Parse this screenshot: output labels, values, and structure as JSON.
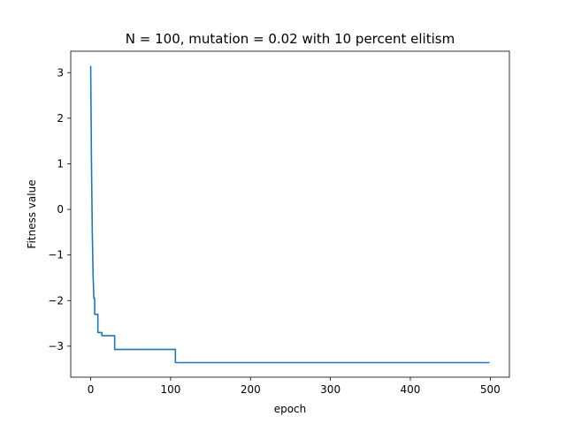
{
  "chart_data": {
    "type": "line",
    "title": "N = 100, mutation = 0.02 with 10 percent elitism",
    "xlabel": "epoch",
    "ylabel": "Fitness value",
    "xlim": [
      -24.95,
      523.95
    ],
    "ylim": [
      -3.68,
      3.47
    ],
    "xticks": [
      {
        "value": 0,
        "label": "0"
      },
      {
        "value": 100,
        "label": "100"
      },
      {
        "value": 200,
        "label": "200"
      },
      {
        "value": 300,
        "label": "300"
      },
      {
        "value": 400,
        "label": "400"
      },
      {
        "value": 500,
        "label": "500"
      }
    ],
    "yticks": [
      {
        "value": 3,
        "label": "3"
      },
      {
        "value": 2,
        "label": "2"
      },
      {
        "value": 1,
        "label": "1"
      },
      {
        "value": 0,
        "label": "0"
      },
      {
        "value": -1,
        "label": "−1"
      },
      {
        "value": -2,
        "label": "−2"
      },
      {
        "value": -3,
        "label": "−3"
      }
    ],
    "grid": false,
    "color": "#1f77b4",
    "series": [
      {
        "x": [
          0,
          1,
          2,
          3,
          4,
          5,
          5,
          6,
          6,
          9,
          9,
          12,
          12,
          14,
          14,
          30,
          30,
          106,
          106,
          499
        ],
        "y": [
          3.15,
          1.0,
          -0.5,
          -1.45,
          -1.95,
          -1.95,
          -2.3,
          -2.3,
          -2.3,
          -2.3,
          -2.7,
          -2.7,
          -2.7,
          -2.7,
          -2.77,
          -2.77,
          -3.07,
          -3.07,
          -3.36,
          -3.36
        ]
      }
    ]
  }
}
